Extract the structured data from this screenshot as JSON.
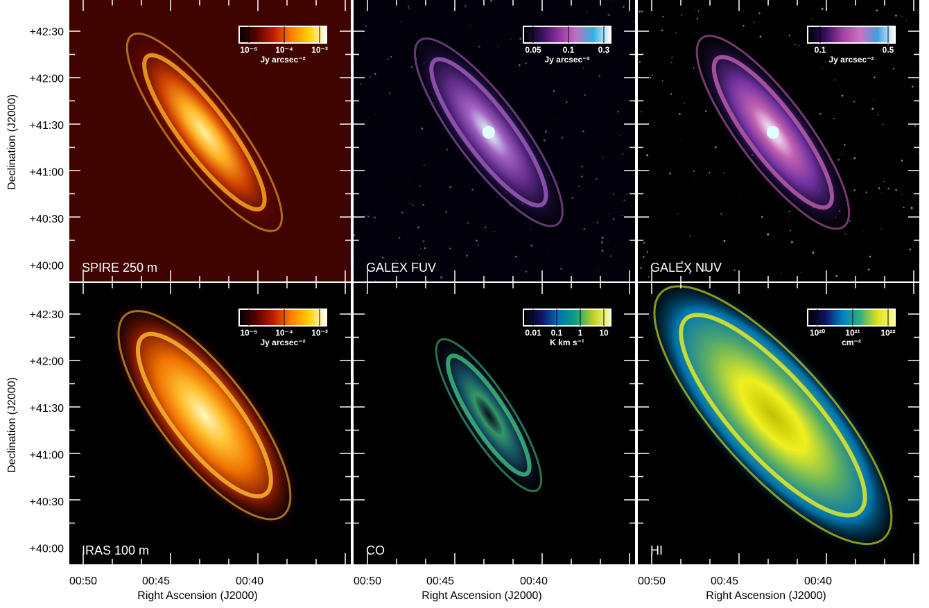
{
  "y_axis": {
    "title": "Declination (J2000)",
    "ticks": [
      "+42:30",
      "+42:00",
      "+41:30",
      "+41:00",
      "+40:30",
      "+40:00"
    ]
  },
  "x_axis": {
    "title": "Right Ascension (J2000)",
    "ticks": [
      "00:50",
      "00:45",
      "00:40"
    ]
  },
  "panels": [
    {
      "label": "SPIRE 250  m",
      "colorbar": {
        "ticks": [
          "10⁻⁵",
          "10⁻⁴",
          "10⁻³"
        ],
        "unit": "Jy arcsec⁻²"
      }
    },
    {
      "label": "GALEX FUV",
      "colorbar": {
        "ticks": [
          "0.05",
          "0.1",
          "0.3"
        ],
        "unit": "Jy arcsec⁻²"
      }
    },
    {
      "label": "GALEX NUV",
      "colorbar": {
        "ticks": [
          "0.1",
          "0.5"
        ],
        "unit": "Jy arcsec⁻²"
      }
    },
    {
      "label": "IRAS 100  m",
      "colorbar": {
        "ticks": [
          "10⁻⁵",
          "10⁻⁴",
          "10⁻³"
        ],
        "unit": "Jy arcsec⁻²"
      }
    },
    {
      "label": "CO",
      "colorbar": {
        "ticks": [
          "0.01",
          "0.1",
          "1",
          "10"
        ],
        "unit": "K km s⁻¹"
      }
    },
    {
      "label": "HI",
      "colorbar": {
        "ticks": [
          "10²⁰",
          "10²¹",
          "10²²"
        ],
        "unit": "cm⁻²"
      }
    }
  ]
}
